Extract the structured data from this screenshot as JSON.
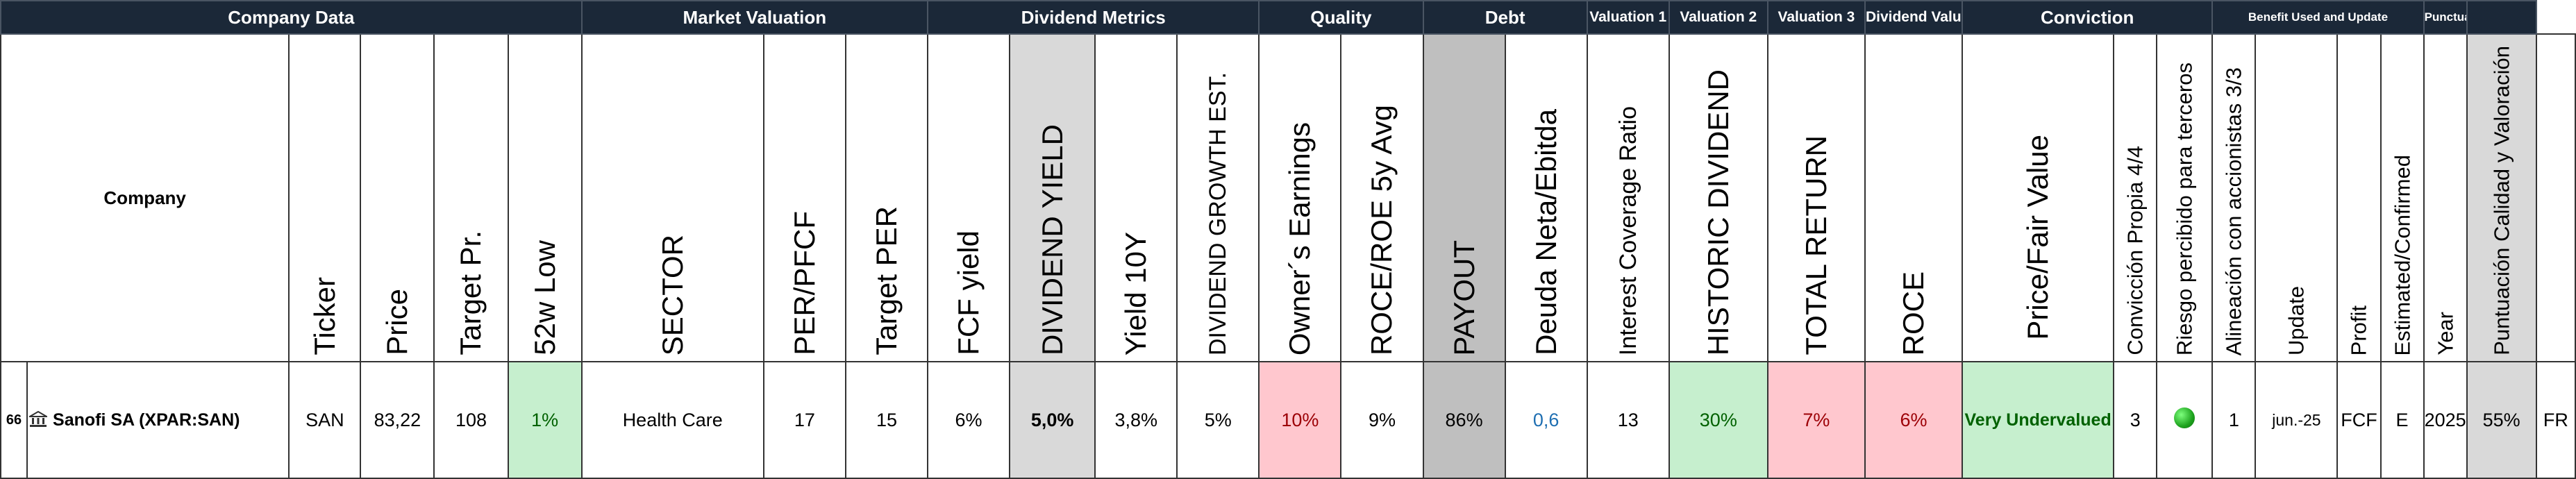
{
  "groups": {
    "company_data": "Company Data",
    "market_valuation": "Market Valuation",
    "dividend_metrics": "Dividend Metrics",
    "quality": "Quality",
    "debt": "Debt",
    "valuation_1": "Valuation 1",
    "valuation_2": "Valuation 2",
    "valuation_3": "Valuation 3",
    "dividend_valuation": "Dividend Valuation",
    "conviction": "Conviction",
    "benefit": "Benefit Used and Update",
    "punctuation": "Punctuation"
  },
  "headers": {
    "company": "Company",
    "ticker": "Ticker",
    "price": "Price",
    "target_pr": "Target Pr.",
    "low_52w": "52w Low",
    "sector": "SECTOR",
    "per_pfcf": "PER/PFCF",
    "target_per": "Target PER",
    "fcf_yield": "FCF yield",
    "dividend_yield": "DIVIDEND YIELD",
    "yield_10y": "Yield 10Y",
    "dividend_growth": "DIVIDEND GROWTH EST.",
    "owners_earnings": "Owner´s Earnings",
    "roce_roe": "ROCE/ROE 5y Avg",
    "payout": "PAYOUT",
    "deuda": "Deuda Neta/Ebitda",
    "interest_coverage": "Interest Coverage Ratio",
    "historic_dividend": "HISTORIC DIVIDEND",
    "total_return": "TOTAL RETURN",
    "roce": "ROCE",
    "price_fair_value": "Price/Fair Value",
    "conviccion_propia": "Convicción Propia 4/4",
    "riesgo": "Riesgo percibido para terceros",
    "alineacion": "Alineación con accionistas 3/3",
    "update": "Update",
    "profit": "Profit",
    "estimated": "Estimated/Confirmed",
    "year": "Year",
    "puntuacion": "Puntuación Calidad y Valoración"
  },
  "row": {
    "index": "66",
    "company_icon": "bank-building-icon",
    "company": "Sanofi SA (XPAR:SAN)",
    "ticker": "SAN",
    "price": "83,22",
    "target_pr": "108",
    "low_52w": "1%",
    "sector": "Health Care",
    "per_pfcf": "17",
    "target_per": "15",
    "fcf_yield": "6%",
    "dividend_yield": "5,0%",
    "yield_10y": "3,8%",
    "dividend_growth": "5%",
    "owners_earnings": "10%",
    "roce_roe": "9%",
    "payout": "86%",
    "deuda": "0,6",
    "interest_coverage": "13",
    "historic_dividend": "30%",
    "total_return": "7%",
    "roce": "6%",
    "price_fair_value": "Very Undervalued",
    "conviccion_propia": "3",
    "riesgo_icon": "green-circle-icon",
    "alineacion": "1",
    "update": "jun.-25",
    "profit": "FCF",
    "estimated": "E",
    "year": "2025",
    "puntuacion": "55%",
    "country": "FR"
  },
  "colors": {
    "header_bg": "#1b2838",
    "good_bg": "#c6efce",
    "good_text": "#006100",
    "bad_bg": "#ffc7ce",
    "bad_text": "#9c0006",
    "neutral_bg": "#d9d9d9",
    "dark_neutral_bg": "#bfbfbf",
    "blue_text": "#1f6fb2"
  }
}
